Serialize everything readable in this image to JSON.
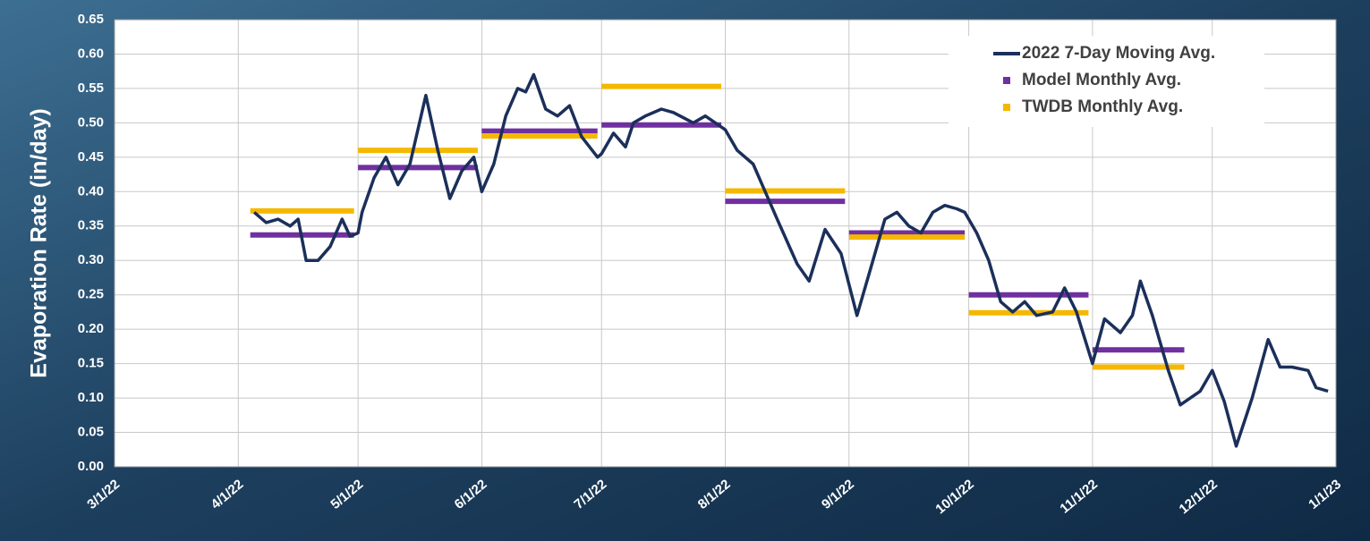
{
  "chart_data": {
    "type": "line",
    "y_label": "Evaporation Rate (in/day)",
    "xlim": [
      "3/1/22",
      "1/1/23"
    ],
    "xticks": [
      "3/1/22",
      "4/1/22",
      "5/1/22",
      "6/1/22",
      "7/1/22",
      "8/1/22",
      "9/1/22",
      "10/1/22",
      "11/1/22",
      "12/1/22",
      "1/1/23"
    ],
    "ylim": [
      0,
      0.65
    ],
    "yticks": [
      {
        "value": 0,
        "label": "0.00"
      },
      {
        "value": 0.05,
        "label": "0.05"
      },
      {
        "value": 0.1,
        "label": "0.10"
      },
      {
        "value": 0.15,
        "label": "0.15"
      },
      {
        "value": 0.2,
        "label": "0.20"
      },
      {
        "value": 0.25,
        "label": "0.25"
      },
      {
        "value": 0.3,
        "label": "0.30"
      },
      {
        "value": 0.35,
        "label": "0.35"
      },
      {
        "value": 0.4,
        "label": "0.40"
      },
      {
        "value": 0.45,
        "label": "0.45"
      },
      {
        "value": 0.5,
        "label": "0.50"
      },
      {
        "value": 0.55,
        "label": "0.55"
      },
      {
        "value": 0.6,
        "label": "0.60"
      },
      {
        "value": 0.65,
        "label": "0.65"
      }
    ],
    "grid": true,
    "legend": "upper right",
    "series": [
      {
        "name": "2022 7-Day Moving Avg.",
        "color": "#1b2f5a",
        "kind": "line",
        "x": [
          "4/5/22",
          "4/8/22",
          "4/11/22",
          "4/14/22",
          "4/16/22",
          "4/18/22",
          "4/21/22",
          "4/24/22",
          "4/27/22",
          "4/29/22",
          "5/1/22",
          "5/2/22",
          "5/5/22",
          "5/8/22",
          "5/11/22",
          "5/14/22",
          "5/18/22",
          "5/21/22",
          "5/24/22",
          "5/27/22",
          "5/30/22",
          "6/1/22",
          "6/4/22",
          "6/7/22",
          "6/10/22",
          "6/12/22",
          "6/14/22",
          "6/17/22",
          "6/20/22",
          "6/23/22",
          "6/26/22",
          "6/30/22",
          "7/1/22",
          "7/4/22",
          "7/7/22",
          "7/9/22",
          "7/12/22",
          "7/16/22",
          "7/19/22",
          "7/24/22",
          "7/27/22",
          "8/1/22",
          "8/4/22",
          "8/8/22",
          "8/11/22",
          "8/14/22",
          "8/19/22",
          "8/22/22",
          "8/26/22",
          "8/30/22",
          "9/3/22",
          "9/6/22",
          "9/10/22",
          "9/13/22",
          "9/16/22",
          "9/19/22",
          "9/22/22",
          "9/25/22",
          "9/28/22",
          "9/30/22",
          "10/3/22",
          "10/6/22",
          "10/9/22",
          "10/12/22",
          "10/15/22",
          "10/18/22",
          "10/22/22",
          "10/25/22",
          "10/28/22",
          "11/1/22",
          "11/4/22",
          "11/8/22",
          "11/11/22",
          "11/13/22",
          "11/16/22",
          "11/20/22",
          "11/23/22",
          "11/28/22",
          "12/1/22",
          "12/4/22",
          "12/7/22",
          "12/11/22",
          "12/15/22",
          "12/18/22",
          "12/21/22",
          "12/25/22",
          "12/27/22",
          "12/30/22"
        ],
        "values": [
          0.37,
          0.355,
          0.36,
          0.35,
          0.36,
          0.3,
          0.3,
          0.32,
          0.36,
          0.335,
          0.34,
          0.37,
          0.42,
          0.45,
          0.41,
          0.44,
          0.54,
          0.46,
          0.39,
          0.43,
          0.45,
          0.4,
          0.44,
          0.51,
          0.55,
          0.545,
          0.57,
          0.52,
          0.51,
          0.525,
          0.48,
          0.45,
          0.455,
          0.485,
          0.465,
          0.5,
          0.51,
          0.52,
          0.515,
          0.5,
          0.51,
          0.49,
          0.46,
          0.44,
          0.4,
          0.36,
          0.295,
          0.27,
          0.345,
          0.31,
          0.22,
          0.28,
          0.36,
          0.37,
          0.35,
          0.34,
          0.37,
          0.38,
          0.375,
          0.37,
          0.34,
          0.3,
          0.24,
          0.225,
          0.24,
          0.22,
          0.225,
          0.26,
          0.225,
          0.15,
          0.215,
          0.195,
          0.22,
          0.27,
          0.22,
          0.14,
          0.09,
          0.11,
          0.14,
          0.095,
          0.03,
          0.1,
          0.185,
          0.145,
          0.145,
          0.14,
          0.115,
          0.11
        ]
      },
      {
        "name": "Model Monthly Avg.",
        "color": "#7030a0",
        "kind": "segments",
        "x": [
          "4/4/22",
          "5/1/22",
          "6/1/22",
          "7/1/22",
          "8/1/22",
          "9/1/22",
          "10/1/22",
          "11/1/22"
        ],
        "x_end": [
          "4/30/22",
          "5/31/22",
          "6/30/22",
          "7/31/22",
          "8/31/22",
          "9/30/22",
          "10/31/22",
          "11/24/22"
        ],
        "values": [
          0.337,
          0.435,
          0.488,
          0.497,
          0.386,
          0.34,
          0.25,
          0.17
        ]
      },
      {
        "name": "TWDB Monthly Avg.",
        "color": "#f5b800",
        "kind": "segments",
        "x": [
          "4/4/22",
          "5/1/22",
          "6/1/22",
          "7/1/22",
          "8/1/22",
          "9/1/22",
          "10/1/22",
          "11/1/22"
        ],
        "x_end": [
          "4/30/22",
          "5/31/22",
          "6/30/22",
          "7/31/22",
          "8/31/22",
          "9/30/22",
          "10/31/22",
          "11/24/22"
        ],
        "values": [
          0.372,
          0.46,
          0.481,
          0.553,
          0.401,
          0.334,
          0.224,
          0.145
        ]
      }
    ]
  }
}
